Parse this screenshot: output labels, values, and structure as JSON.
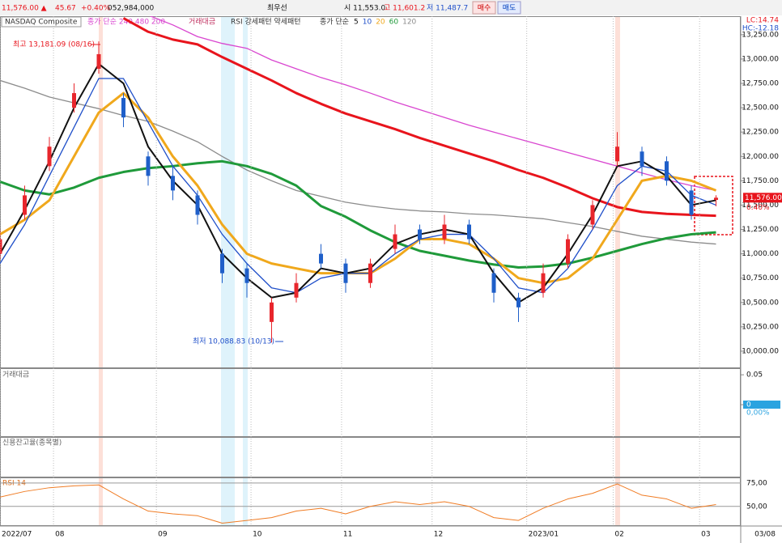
{
  "header": {
    "price": "11,576.00 ▲",
    "change": "45.67",
    "pct": "+0.40%",
    "volume": "052,984,000",
    "quote_type": "최우선",
    "open": "시 11,553.0",
    "high": "고 11,601.2",
    "low": "저 11,487.7",
    "buy": "매수",
    "sell": "매도",
    "cursor_date": "03/08"
  },
  "chart_data": [
    {
      "type": "candlestick",
      "title": "NASDAQ Composite",
      "legend_1": "종가 단순 240 480 200",
      "legend_2": "거래대금",
      "legend_3": "RSI 강세패턴 약세패턴",
      "legend_4": "종가 단순",
      "lc_label": "LC:14.74",
      "hc_label": "HC:-12.18",
      "last_label": "11,576.00",
      "last_pct": "0.40%",
      "up_color": "#e8262c",
      "down_color": "#1f5fc9",
      "x": [
        0,
        6,
        12,
        18,
        24,
        30,
        36,
        42,
        48,
        54,
        60,
        66,
        72,
        78,
        84,
        90,
        96,
        102,
        108,
        114,
        120,
        126,
        132,
        138,
        144,
        150,
        156,
        162,
        168,
        174
      ],
      "open": [
        11000,
        11400,
        11900,
        12500,
        12900,
        12600,
        12000,
        11800,
        11600,
        11000,
        10850,
        10300,
        10550,
        11000,
        10900,
        10700,
        11050,
        11250,
        11150,
        11300,
        10800,
        10550,
        10600,
        10900,
        11300,
        11950,
        12050,
        11950,
        11650,
        11553.0
      ],
      "high": [
        11250,
        11700,
        12200,
        12750,
        13181.09,
        12650,
        12050,
        11900,
        11650,
        11050,
        10900,
        10550,
        10800,
        11100,
        10950,
        10950,
        11300,
        11300,
        11400,
        11350,
        10850,
        10600,
        10900,
        11200,
        11550,
        12250,
        12100,
        12000,
        11700,
        11601.2
      ],
      "low": [
        10950,
        11350,
        11850,
        12450,
        12850,
        12300,
        11700,
        11550,
        11300,
        10700,
        10550,
        10088.83,
        10500,
        10850,
        10600,
        10650,
        11000,
        11100,
        11100,
        11100,
        10500,
        10300,
        10550,
        10850,
        11250,
        11900,
        11800,
        11700,
        11350,
        11487.7
      ],
      "close": [
        11150,
        11600,
        12100,
        12650,
        13050,
        12400,
        11800,
        11650,
        11400,
        10800,
        10700,
        10500,
        10700,
        10900,
        10700,
        10900,
        11200,
        11150,
        11300,
        11150,
        10600,
        10450,
        10800,
        11150,
        11500,
        12100,
        11900,
        11750,
        11400,
        11576
      ],
      "series": [
        {
          "color": "#d946d0",
          "width": 1.3,
          "values": [
            null,
            null,
            null,
            null,
            null,
            null,
            13450,
            13350,
            13230,
            13160,
            13110,
            12990,
            12900,
            12810,
            12735,
            12650,
            12560,
            12480,
            12400,
            12320,
            12250,
            12180,
            12110,
            12040,
            11970,
            11900,
            11830,
            11760,
            11700,
            11650
          ]
        },
        {
          "color": "#e8141c",
          "width": 3,
          "values": [
            null,
            null,
            null,
            null,
            null,
            13420,
            13280,
            13200,
            13150,
            13020,
            12900,
            12780,
            12650,
            12540,
            12440,
            12360,
            12280,
            12190,
            12110,
            12030,
            11950,
            11860,
            11780,
            11680,
            11570,
            11480,
            11430,
            11410,
            11400,
            11390
          ]
        },
        {
          "name": "120",
          "color": "#8c8c8c",
          "width": 1.3,
          "values": [
            12780,
            12700,
            12610,
            12550,
            12490,
            12420,
            12360,
            12260,
            12150,
            12000,
            11860,
            11750,
            11650,
            11590,
            11530,
            11490,
            11460,
            11440,
            11430,
            11410,
            11400,
            11380,
            11360,
            11320,
            11280,
            11230,
            11180,
            11150,
            11120,
            11100
          ]
        },
        {
          "name": "60",
          "color": "#1f9a3a",
          "width": 3,
          "values": [
            11740,
            11650,
            11610,
            11680,
            11780,
            11840,
            11880,
            11900,
            11930,
            11950,
            11900,
            11820,
            11700,
            11490,
            11380,
            11240,
            11120,
            11030,
            10980,
            10930,
            10890,
            10860,
            10870,
            10900,
            10960,
            11030,
            11100,
            11160,
            11200,
            11220
          ]
        },
        {
          "name": "20",
          "color": "#f0a81c",
          "width": 3,
          "values": [
            11200,
            11350,
            11550,
            12000,
            12450,
            12650,
            12400,
            12000,
            11700,
            11300,
            11000,
            10900,
            10850,
            10800,
            10800,
            10800,
            10950,
            11150,
            11150,
            11100,
            10950,
            10750,
            10700,
            10750,
            10950,
            11350,
            11750,
            11800,
            11750,
            11650
          ]
        },
        {
          "name": "10",
          "color": "#1f4fc9",
          "width": 1.3,
          "values": [
            10900,
            11300,
            11800,
            12300,
            12800,
            12800,
            12350,
            11900,
            11600,
            11200,
            10900,
            10650,
            10600,
            10750,
            10800,
            10800,
            11000,
            11150,
            11200,
            11200,
            10950,
            10650,
            10600,
            10850,
            11250,
            11700,
            11900,
            11850,
            11600,
            11500
          ]
        },
        {
          "name": "5",
          "color": "#111111",
          "width": 2,
          "values": [
            11000,
            11450,
            11950,
            12500,
            12950,
            12750,
            12100,
            11750,
            11500,
            11000,
            10750,
            10550,
            10600,
            10850,
            10800,
            10850,
            11100,
            11200,
            11250,
            11200,
            10800,
            10500,
            10650,
            11000,
            11400,
            11900,
            11950,
            11800,
            11500,
            11550
          ]
        }
      ],
      "annotations": [
        {
          "text": "최고 13,181.09 (08/16)",
          "color": "#e8141c"
        },
        {
          "text": "최저 10,088.83 (10/13)",
          "color": "#1f4fc9"
        }
      ],
      "xlim": [
        0,
        180
      ],
      "xticks": [
        {
          "value": 0,
          "label": "2022/07"
        },
        {
          "value": 13,
          "label": "08"
        },
        {
          "value": 38,
          "label": "09"
        },
        {
          "value": 61,
          "label": "10"
        },
        {
          "value": 83,
          "label": "11"
        },
        {
          "value": 105,
          "label": "12"
        },
        {
          "value": 128,
          "label": "2023/01"
        },
        {
          "value": 149,
          "label": "02"
        },
        {
          "value": 170,
          "label": "03"
        }
      ],
      "ylim": [
        9825,
        13440
      ],
      "yticks": [
        {
          "value": 10000,
          "label": "10,000.00"
        },
        {
          "value": 10250,
          "label": "10,250.00"
        },
        {
          "value": 10500,
          "label": "10,500.00"
        },
        {
          "value": 10750,
          "label": "10,750.00"
        },
        {
          "value": 11000,
          "label": "11,000.00"
        },
        {
          "value": 11250,
          "label": "11,250.00"
        },
        {
          "value": 11500,
          "label": "11,500.00"
        },
        {
          "value": 11750,
          "label": "11,750.00"
        },
        {
          "value": 12000,
          "label": "12,000.00"
        },
        {
          "value": 12250,
          "label": "12,250.00"
        },
        {
          "value": 12500,
          "label": "12,500.00"
        },
        {
          "value": 12750,
          "label": "12,750.00"
        },
        {
          "value": 13000,
          "label": "13,000.00"
        },
        {
          "value": 13250,
          "label": "13,250.00"
        }
      ]
    },
    {
      "type": "bar",
      "title": "거래대금",
      "tag": "0,00%",
      "ylim": [
        -0.054,
        0.061
      ],
      "yticks": [
        0,
        0.05
      ]
    },
    {
      "type": "line",
      "title": "신용잔고율(종목별)"
    },
    {
      "type": "line",
      "title": "RSI 14",
      "color": "#f07c24",
      "values": [
        60,
        66,
        70,
        72,
        73,
        58,
        45,
        42,
        40,
        32,
        35,
        38,
        45,
        48,
        42,
        50,
        55,
        52,
        55,
        50,
        38,
        35,
        48,
        58,
        64,
        74,
        62,
        58,
        48,
        52
      ],
      "ylim": [
        29,
        81
      ],
      "yticks": [
        {
          "value": 50,
          "label": "50,00"
        },
        {
          "value": 75,
          "label": "75,00"
        }
      ]
    }
  ]
}
